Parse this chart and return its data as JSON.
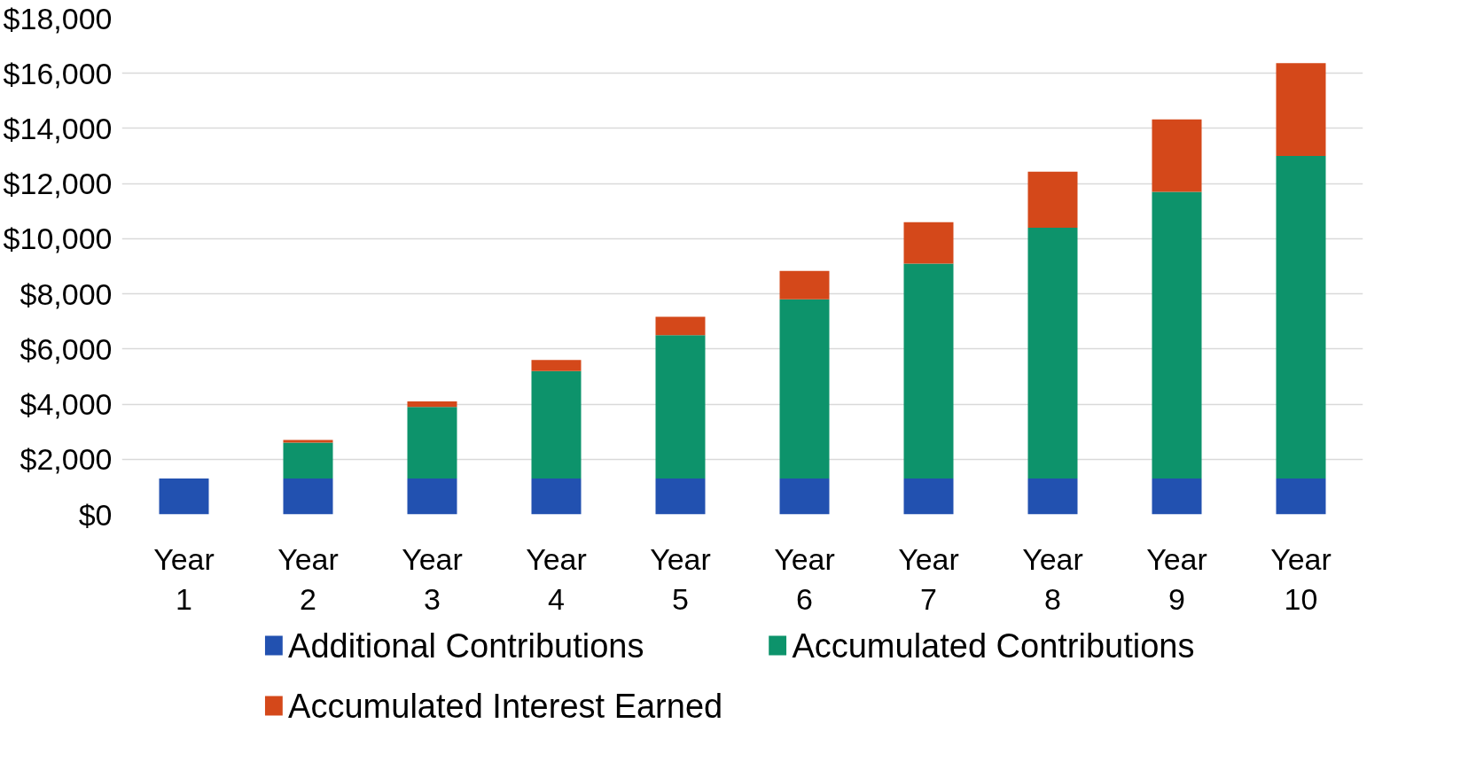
{
  "chart_data": {
    "type": "bar",
    "stacked": true,
    "categories": [
      "Year 1",
      "Year 2",
      "Year 3",
      "Year 4",
      "Year 5",
      "Year 6",
      "Year 7",
      "Year 8",
      "Year 9",
      "Year 10"
    ],
    "series": [
      {
        "name": "Additional Contributions",
        "color": "#2251b0",
        "values": [
          1300,
          1300,
          1300,
          1300,
          1300,
          1300,
          1300,
          1300,
          1300,
          1300
        ]
      },
      {
        "name": "Accumulated Contributions",
        "color": "#0d936b",
        "values": [
          0,
          1300,
          2600,
          3900,
          5200,
          6500,
          7800,
          9100,
          10400,
          11700
        ]
      },
      {
        "name": "Accumulated Interest Earned",
        "color": "#d4481a",
        "values": [
          0,
          100,
          200,
          400,
          670,
          1030,
          1500,
          2030,
          2630,
          3370
        ]
      }
    ],
    "ylim": [
      0,
      18000
    ],
    "yticks": [
      {
        "value": 0,
        "label": "$0"
      },
      {
        "value": 2000,
        "label": "$2,000"
      },
      {
        "value": 4000,
        "label": "$4,000"
      },
      {
        "value": 6000,
        "label": "$6,000"
      },
      {
        "value": 8000,
        "label": "$8,000"
      },
      {
        "value": 10000,
        "label": "$10,000"
      },
      {
        "value": 12000,
        "label": "$12,000"
      },
      {
        "value": 14000,
        "label": "$14,000"
      },
      {
        "value": 16000,
        "label": "$16,000"
      },
      {
        "value": 18000,
        "label": "$18,000"
      }
    ],
    "grid": "y",
    "legend": "bottom"
  }
}
